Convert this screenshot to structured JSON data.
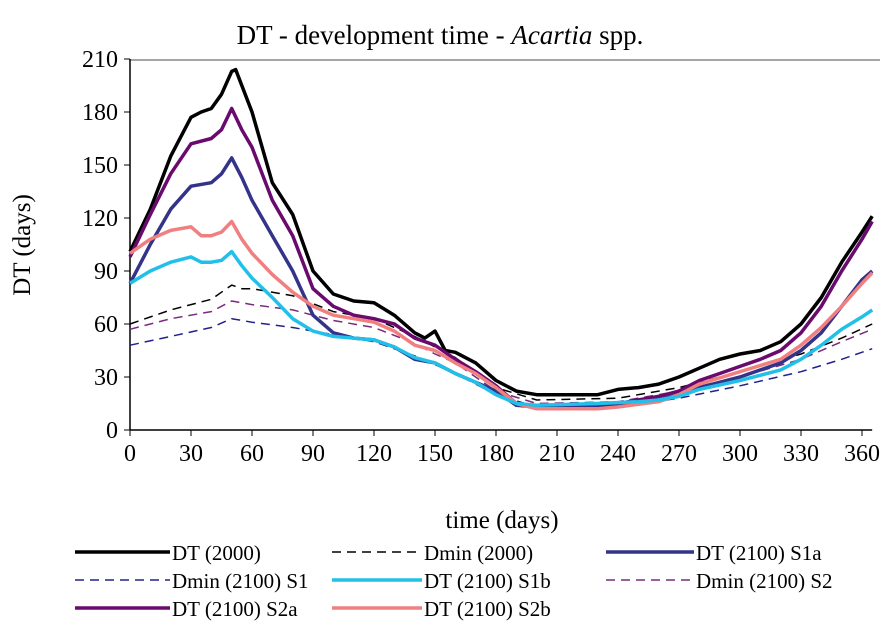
{
  "chart_data": {
    "type": "line",
    "title": "DT - development time - ",
    "title_italic": "Acartia",
    "title_suffix": " spp.",
    "xlabel": "time (days)",
    "ylabel": "DT (days)",
    "xlim": [
      0,
      365
    ],
    "ylim": [
      0,
      210
    ],
    "xticks": [
      0,
      30,
      60,
      90,
      120,
      150,
      180,
      210,
      240,
      270,
      300,
      330,
      360
    ],
    "yticks": [
      0,
      30,
      60,
      90,
      120,
      150,
      180,
      210
    ],
    "grid": false,
    "legend_placement": "bottom",
    "series": [
      {
        "name": "DT  (2000)",
        "color": "#000000",
        "dash": false,
        "x": [
          0,
          10,
          20,
          30,
          35,
          40,
          45,
          50,
          52,
          55,
          60,
          70,
          80,
          90,
          100,
          110,
          120,
          130,
          140,
          145,
          150,
          155,
          160,
          170,
          180,
          190,
          200,
          210,
          220,
          230,
          240,
          250,
          260,
          270,
          280,
          290,
          300,
          310,
          320,
          330,
          340,
          350,
          360,
          365
        ],
        "y": [
          101,
          125,
          155,
          177,
          180,
          182,
          190,
          203,
          204,
          195,
          180,
          140,
          122,
          90,
          77,
          73,
          72,
          65,
          55,
          52,
          56,
          45,
          44,
          38,
          28,
          22,
          20,
          20,
          20,
          20,
          23,
          24,
          26,
          30,
          35,
          40,
          43,
          45,
          50,
          60,
          75,
          95,
          112,
          121
        ]
      },
      {
        "name": "Dmin (2000)",
        "color": "#000000",
        "dash": true,
        "x": [
          0,
          20,
          40,
          50,
          55,
          60,
          80,
          100,
          120,
          140,
          150,
          160,
          180,
          200,
          240,
          270,
          300,
          330,
          350,
          365
        ],
        "y": [
          60,
          68,
          74,
          82,
          80,
          80,
          76,
          67,
          63,
          53,
          47,
          41,
          24,
          17,
          18,
          24,
          33,
          43,
          52,
          60
        ]
      },
      {
        "name": "DT (2100) S1a",
        "color": "#33338a",
        "dash": false,
        "x": [
          0,
          10,
          20,
          30,
          40,
          45,
          50,
          55,
          60,
          70,
          80,
          90,
          100,
          110,
          120,
          130,
          140,
          150,
          160,
          170,
          180,
          190,
          200,
          230,
          240,
          260,
          270,
          280,
          300,
          320,
          330,
          340,
          350,
          360,
          365
        ],
        "y": [
          83,
          105,
          125,
          138,
          140,
          145,
          154,
          143,
          130,
          110,
          90,
          65,
          55,
          52,
          51,
          47,
          40,
          38,
          32,
          27,
          22,
          14,
          13,
          13,
          14,
          17,
          20,
          24,
          30,
          38,
          45,
          55,
          70,
          85,
          90
        ]
      },
      {
        "name": "Dmin (2100) S1",
        "color": "#22228a",
        "dash": true,
        "x": [
          0,
          20,
          40,
          50,
          60,
          80,
          100,
          120,
          140,
          150,
          160,
          180,
          200,
          240,
          270,
          300,
          330,
          350,
          365
        ],
        "y": [
          48,
          53,
          58,
          63,
          61,
          58,
          54,
          50,
          42,
          37,
          32,
          20,
          13,
          13,
          18,
          25,
          33,
          40,
          46
        ]
      },
      {
        "name": "DT (2100) S1b",
        "color": "#22c0e8",
        "dash": false,
        "x": [
          0,
          10,
          20,
          30,
          35,
          40,
          45,
          50,
          55,
          60,
          70,
          80,
          90,
          100,
          110,
          120,
          130,
          140,
          150,
          160,
          170,
          180,
          190,
          200,
          230,
          250,
          260,
          270,
          280,
          300,
          320,
          330,
          340,
          350,
          360,
          365
        ],
        "y": [
          83,
          90,
          95,
          98,
          95,
          95,
          96,
          101,
          93,
          86,
          75,
          63,
          56,
          53,
          52,
          51,
          47,
          41,
          38,
          32,
          27,
          20,
          15,
          14,
          15,
          16,
          17,
          19,
          23,
          28,
          34,
          40,
          48,
          57,
          64,
          68
        ]
      },
      {
        "name": "Dmin (2100) S2",
        "color": "#7a2a7e",
        "dash": true,
        "x": [
          0,
          20,
          40,
          50,
          60,
          80,
          100,
          120,
          140,
          150,
          160,
          180,
          200,
          240,
          270,
          300,
          330,
          350,
          365
        ],
        "y": [
          57,
          63,
          67,
          73,
          71,
          68,
          62,
          58,
          49,
          43,
          38,
          22,
          15,
          16,
          22,
          30,
          40,
          50,
          57
        ]
      },
      {
        "name": "DT (2100) S2a",
        "color": "#6a0a6e",
        "dash": false,
        "x": [
          0,
          10,
          20,
          30,
          40,
          45,
          50,
          55,
          60,
          70,
          80,
          90,
          100,
          110,
          120,
          130,
          140,
          150,
          160,
          170,
          180,
          190,
          200,
          230,
          240,
          250,
          260,
          270,
          280,
          290,
          300,
          310,
          320,
          330,
          340,
          350,
          360,
          365
        ],
        "y": [
          98,
          122,
          145,
          162,
          165,
          170,
          182,
          170,
          160,
          130,
          110,
          80,
          70,
          65,
          63,
          60,
          52,
          48,
          40,
          33,
          25,
          15,
          13,
          13,
          15,
          17,
          19,
          22,
          28,
          32,
          36,
          40,
          45,
          55,
          70,
          90,
          108,
          118
        ]
      },
      {
        "name": "DT (2100) S2b",
        "color": "#f08080",
        "dash": false,
        "x": [
          0,
          10,
          20,
          30,
          35,
          40,
          45,
          50,
          55,
          60,
          70,
          80,
          90,
          100,
          110,
          120,
          130,
          140,
          150,
          160,
          170,
          180,
          190,
          200,
          230,
          240,
          260,
          270,
          280,
          300,
          320,
          330,
          340,
          350,
          360,
          365
        ],
        "y": [
          100,
          108,
          113,
          115,
          110,
          110,
          112,
          118,
          108,
          100,
          88,
          78,
          70,
          65,
          63,
          61,
          56,
          48,
          45,
          38,
          32,
          24,
          15,
          12,
          12,
          13,
          16,
          20,
          26,
          33,
          40,
          48,
          58,
          70,
          83,
          89
        ]
      }
    ]
  }
}
